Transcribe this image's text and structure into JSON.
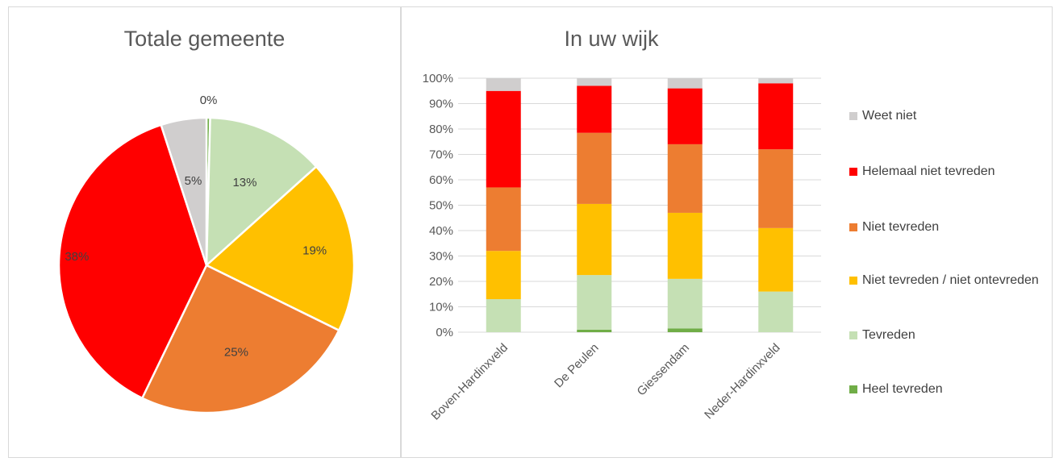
{
  "chart_data": [
    {
      "type": "pie",
      "title": "Totale gemeente",
      "slices": [
        {
          "name": "Heel tevreden",
          "value": 0.4,
          "label": "0%",
          "color": "#70ad47"
        },
        {
          "name": "Tevreden",
          "value": 13,
          "label": "13%",
          "color": "#c5e0b4"
        },
        {
          "name": "Niet tevreden / niet ontevreden",
          "value": 19,
          "label": "19%",
          "color": "#ffc000"
        },
        {
          "name": "Niet tevreden",
          "value": 25,
          "label": "25%",
          "color": "#ed7d31"
        },
        {
          "name": "Helemaal niet tevreden",
          "value": 38,
          "label": "38%",
          "color": "#ff0000"
        },
        {
          "name": "Weet niet",
          "value": 5,
          "label": "5%",
          "color": "#d0cece"
        }
      ]
    },
    {
      "type": "bar",
      "stacked": true,
      "title": "In uw wijk",
      "categories": [
        "Boven-Hardinxveld",
        "De Peulen",
        "Giessendam",
        "Neder-Hardinxveld"
      ],
      "ylim": [
        0,
        100
      ],
      "ytick_labels": [
        "0%",
        "10%",
        "20%",
        "30%",
        "40%",
        "50%",
        "60%",
        "70%",
        "80%",
        "90%",
        "100%"
      ],
      "grid": true,
      "legend_position": "right",
      "series": [
        {
          "name": "Heel tevreden",
          "color": "#70ad47",
          "values": [
            0,
            1,
            1.5,
            0
          ]
        },
        {
          "name": "Tevreden",
          "color": "#c5e0b4",
          "values": [
            13,
            21.5,
            19.5,
            16
          ]
        },
        {
          "name": "Niet tevreden / niet ontevreden",
          "color": "#ffc000",
          "values": [
            19,
            28,
            26,
            25
          ]
        },
        {
          "name": "Niet tevreden",
          "color": "#ed7d31",
          "values": [
            25,
            28,
            27,
            31
          ]
        },
        {
          "name": "Helemaal niet tevreden",
          "color": "#ff0000",
          "values": [
            38,
            18.5,
            22,
            26
          ]
        },
        {
          "name": "Weet niet",
          "color": "#d0cece",
          "values": [
            5,
            3,
            4,
            2
          ]
        }
      ]
    }
  ]
}
